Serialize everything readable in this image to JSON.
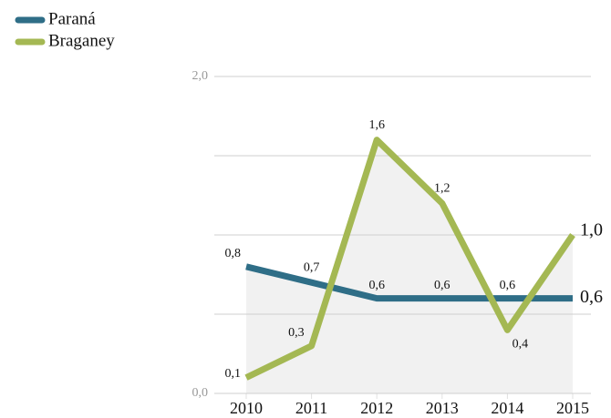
{
  "chart_data": {
    "type": "line",
    "categories": [
      "2010",
      "2011",
      "2012",
      "2013",
      "2014",
      "2015"
    ],
    "series": [
      {
        "name": "Paraná",
        "color": "#2f6e87",
        "values": [
          0.8,
          0.7,
          0.6,
          0.6,
          0.6,
          0.6
        ],
        "value_labels": [
          "0,8",
          "0,7",
          "0,6",
          "0,6",
          "0,6",
          "0,6"
        ]
      },
      {
        "name": "Braganey",
        "color": "#a4b853",
        "values": [
          0.1,
          0.3,
          1.6,
          1.2,
          0.4,
          1.0
        ],
        "value_labels": [
          "0,1",
          "0,3",
          "1,6",
          "1,2",
          "0,4",
          "1,0"
        ]
      }
    ],
    "ylim": [
      0,
      2
    ],
    "yticks": [
      {
        "value": 0,
        "label": "0,0"
      },
      {
        "value": 0.5
      },
      {
        "value": 1
      },
      {
        "value": 1.5
      },
      {
        "value": 2,
        "label": "2,0"
      }
    ],
    "grid": true,
    "legend": "top-left"
  }
}
